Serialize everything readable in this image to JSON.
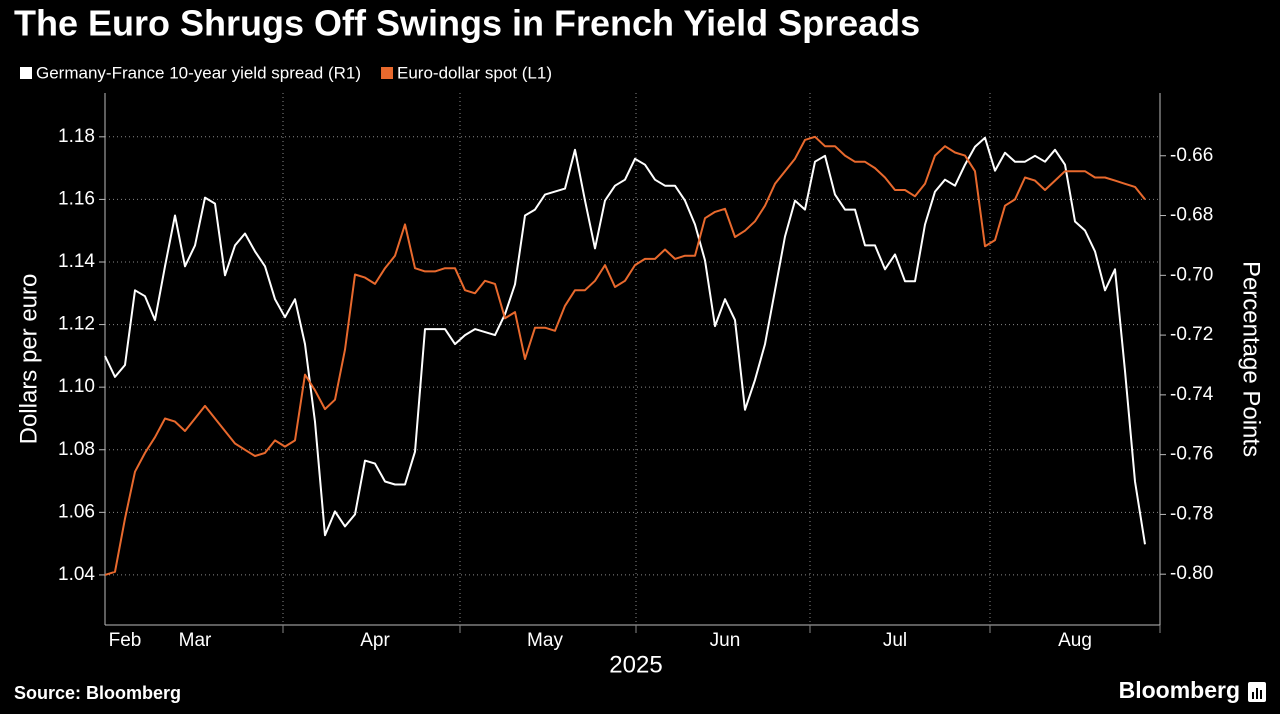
{
  "chart_data": {
    "type": "line",
    "title": "The Euro Shrugs Off Swings in French Yield Spreads",
    "x_label": "2025",
    "y_label": "Dollars per euro",
    "y2_label": "Percentage Points",
    "source": "Source: Bloomberg",
    "brand": "Bloomberg",
    "grid": true,
    "categories": [
      null,
      null,
      "Feb",
      null,
      null,
      null,
      null,
      null,
      null,
      "Mar",
      null,
      null,
      null,
      null,
      null,
      null,
      null,
      null,
      null,
      null,
      null,
      null,
      null,
      null,
      null,
      null,
      null,
      "Apr",
      null,
      null,
      null,
      null,
      null,
      null,
      null,
      null,
      null,
      null,
      null,
      null,
      null,
      null,
      null,
      null,
      "May",
      null,
      null,
      null,
      null,
      null,
      null,
      null,
      null,
      null,
      null,
      null,
      null,
      null,
      null,
      null,
      null,
      null,
      "Jun",
      null,
      null,
      null,
      null,
      null,
      null,
      null,
      null,
      null,
      null,
      null,
      null,
      null,
      null,
      null,
      null,
      "Jul",
      null,
      null,
      null,
      null,
      null,
      null,
      null,
      null,
      null,
      null,
      null,
      null,
      null,
      null,
      null,
      null,
      null,
      "Aug",
      null,
      null,
      null,
      null,
      null,
      null,
      null
    ],
    "ylim": [
      1.024,
      1.194
    ],
    "yticks": [
      1.04,
      1.06,
      1.08,
      {
        "value": 1.1,
        "label": "1.10"
      },
      1.12,
      1.14,
      1.16,
      1.18
    ],
    "y2lim": [
      -0.817,
      -0.639
    ],
    "y2ticks": [
      {
        "value": -0.8,
        "label": "-0.80"
      },
      -0.78,
      -0.76,
      -0.74,
      -0.72,
      {
        "value": -0.7,
        "label": "-0.70"
      },
      -0.68,
      -0.66
    ],
    "series": [
      {
        "name": "Germany-France 10-year yield spread (R1)",
        "color": "#ffffff",
        "axis": "y2",
        "values": [
          -0.727,
          -0.734,
          -0.73,
          -0.705,
          -0.707,
          -0.715,
          -0.697,
          -0.68,
          -0.697,
          -0.69,
          -0.674,
          -0.676,
          -0.7,
          -0.69,
          -0.686,
          -0.692,
          -0.697,
          -0.708,
          -0.714,
          -0.708,
          -0.723,
          -0.749,
          -0.787,
          -0.779,
          -0.784,
          -0.78,
          -0.762,
          -0.763,
          -0.769,
          -0.77,
          -0.77,
          -0.759,
          -0.718,
          -0.718,
          -0.718,
          -0.723,
          -0.72,
          -0.718,
          -0.719,
          -0.72,
          -0.713,
          -0.703,
          -0.68,
          -0.678,
          -0.673,
          -0.672,
          -0.671,
          -0.658,
          -0.675,
          -0.691,
          -0.675,
          -0.67,
          -0.668,
          -0.661,
          -0.663,
          -0.668,
          -0.67,
          -0.67,
          -0.675,
          -0.683,
          -0.695,
          -0.717,
          -0.708,
          -0.715,
          -0.745,
          -0.735,
          -0.723,
          -0.705,
          -0.687,
          -0.675,
          -0.678,
          -0.662,
          -0.66,
          -0.673,
          -0.678,
          -0.678,
          -0.69,
          -0.69,
          -0.698,
          -0.693,
          -0.702,
          -0.702,
          -0.683,
          -0.672,
          -0.668,
          -0.67,
          -0.663,
          -0.657,
          -0.654,
          -0.665,
          -0.659,
          -0.662,
          -0.662,
          -0.66,
          -0.662,
          -0.658,
          -0.663,
          -0.682,
          -0.685,
          -0.692,
          -0.705,
          -0.698,
          -0.732,
          -0.769,
          -0.79
        ]
      },
      {
        "name": "Euro-dollar spot (L1)",
        "color": "#e8692d",
        "axis": "y",
        "values": [
          1.04,
          1.041,
          1.058,
          1.073,
          1.079,
          1.084,
          1.09,
          1.089,
          1.086,
          1.09,
          1.094,
          1.09,
          1.086,
          1.082,
          1.08,
          1.078,
          1.079,
          1.083,
          1.081,
          1.083,
          1.104,
          1.099,
          1.093,
          1.096,
          1.112,
          1.136,
          1.135,
          1.133,
          1.138,
          1.142,
          1.152,
          1.138,
          1.137,
          1.137,
          1.138,
          1.138,
          1.131,
          1.13,
          1.134,
          1.133,
          1.122,
          1.124,
          1.109,
          1.119,
          1.119,
          1.118,
          1.126,
          1.131,
          1.131,
          1.134,
          1.139,
          1.132,
          1.134,
          1.139,
          1.141,
          1.141,
          1.144,
          1.141,
          1.142,
          1.142,
          1.154,
          1.156,
          1.157,
          1.148,
          1.15,
          1.153,
          1.158,
          1.165,
          1.169,
          1.173,
          1.179,
          1.18,
          1.177,
          1.177,
          1.174,
          1.172,
          1.172,
          1.17,
          1.167,
          1.163,
          1.163,
          1.161,
          1.165,
          1.174,
          1.177,
          1.175,
          1.174,
          1.169,
          1.145,
          1.147,
          1.158,
          1.16,
          1.167,
          1.166,
          1.163,
          1.166,
          1.169,
          1.169,
          1.169,
          1.167,
          1.167,
          1.166,
          1.165,
          1.164,
          1.16
        ]
      }
    ]
  }
}
